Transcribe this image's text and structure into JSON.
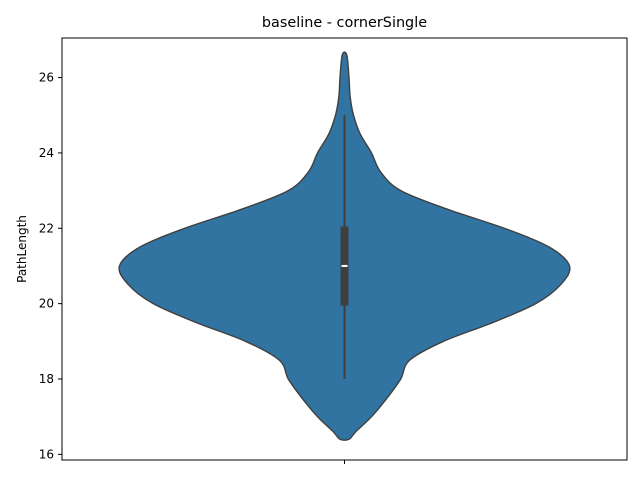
{
  "chart_data": {
    "type": "violin",
    "title": "baseline - cornerSingle",
    "xlabel": "",
    "ylabel": "PathLength",
    "ylim": [
      15.85,
      27.05
    ],
    "yticks": [
      16,
      18,
      20,
      22,
      24,
      26
    ],
    "grid": false,
    "legend": "none",
    "colors": {
      "violin_fill": "#3274a1",
      "violin_edge": "#3f3f3f",
      "box": "#3f3f3f",
      "median": "#ffffff"
    },
    "series": [
      {
        "density_profile": [
          [
            16.4,
            0.02
          ],
          [
            16.6,
            0.05
          ],
          [
            17.0,
            0.12
          ],
          [
            17.5,
            0.19
          ],
          [
            18.0,
            0.25
          ],
          [
            18.5,
            0.29
          ],
          [
            19.0,
            0.44
          ],
          [
            19.5,
            0.66
          ],
          [
            20.0,
            0.85
          ],
          [
            20.5,
            0.96
          ],
          [
            21.0,
            1.0
          ],
          [
            21.5,
            0.91
          ],
          [
            22.0,
            0.71
          ],
          [
            22.5,
            0.46
          ],
          [
            23.0,
            0.25
          ],
          [
            23.5,
            0.16
          ],
          [
            24.0,
            0.12
          ],
          [
            24.5,
            0.07
          ],
          [
            25.0,
            0.04
          ],
          [
            25.5,
            0.025
          ],
          [
            26.0,
            0.02
          ],
          [
            26.6,
            0.01
          ]
        ],
        "box": {
          "min": 18,
          "q1": 19.95,
          "median": 21,
          "q3": 22.05,
          "max": 25
        }
      }
    ]
  }
}
